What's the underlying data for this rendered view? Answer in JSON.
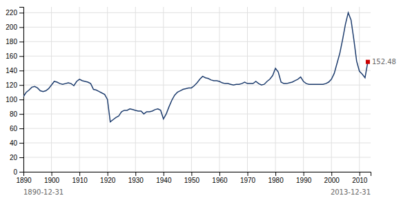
{
  "chart_data": {
    "type": "line",
    "series": [
      {
        "type": "line",
        "color": "#1e3d6e",
        "x": [
          1890,
          1891,
          1892,
          1893,
          1894,
          1895,
          1896,
          1897,
          1898,
          1899,
          1900,
          1901,
          1902,
          1903,
          1904,
          1905,
          1906,
          1907,
          1908,
          1909,
          1910,
          1911,
          1912,
          1913,
          1914,
          1915,
          1916,
          1917,
          1918,
          1919,
          1920,
          1921,
          1922,
          1923,
          1924,
          1925,
          1926,
          1927,
          1928,
          1929,
          1930,
          1931,
          1932,
          1933,
          1934,
          1935,
          1936,
          1937,
          1938,
          1939,
          1940,
          1941,
          1942,
          1943,
          1944,
          1945,
          1946,
          1947,
          1948,
          1949,
          1950,
          1951,
          1952,
          1953,
          1954,
          1955,
          1956,
          1957,
          1958,
          1959,
          1960,
          1961,
          1962,
          1963,
          1964,
          1965,
          1966,
          1967,
          1968,
          1969,
          1970,
          1971,
          1972,
          1973,
          1974,
          1975,
          1976,
          1977,
          1978,
          1979,
          1980,
          1981,
          1982,
          1983,
          1984,
          1985,
          1986,
          1987,
          1988,
          1989,
          1990,
          1991,
          1992,
          1993,
          1994,
          1995,
          1996,
          1997,
          1998,
          1999,
          2000,
          2001,
          2002,
          2003,
          2004,
          2005,
          2006,
          2007,
          2008,
          2009,
          2010,
          2011,
          2012,
          2013
        ],
        "values": [
          104,
          110,
          113,
          117,
          118,
          116,
          112,
          111,
          112,
          115,
          120,
          125,
          124,
          122,
          121,
          122,
          123,
          122,
          119,
          125,
          128,
          126,
          125,
          124,
          122,
          114,
          113,
          111,
          109,
          107,
          100,
          69,
          72,
          75,
          77,
          83,
          85,
          85,
          87,
          86,
          85,
          84,
          84,
          80,
          83,
          83,
          84,
          86,
          87,
          85,
          73,
          80,
          90,
          99,
          106,
          110,
          112,
          114,
          115,
          116,
          116,
          119,
          123,
          128,
          132,
          130,
          129,
          127,
          126,
          126,
          125,
          123,
          122,
          122,
          121,
          120,
          121,
          121,
          122,
          124,
          122,
          122,
          122,
          125,
          122,
          120,
          121,
          125,
          128,
          133,
          143,
          138,
          124,
          122,
          122,
          123,
          124,
          126,
          128,
          131,
          125,
          122,
          121,
          121,
          121,
          121,
          121,
          121,
          122,
          124,
          128,
          136,
          150,
          164,
          183,
          204,
          220,
          210,
          183,
          153,
          139,
          135,
          130,
          152
        ]
      },
      {
        "type": "scatter",
        "marker": "square",
        "color": "#cc0000",
        "x": [
          2013
        ],
        "values": [
          152
        ]
      }
    ],
    "annotations": [
      "152.48",
      "1890-12-31",
      "2013-12-31"
    ],
    "xlim": [
      1890,
      2014
    ],
    "xticks": [
      1890,
      1900,
      1910,
      1920,
      1930,
      1940,
      1950,
      1960,
      1970,
      1980,
      1990,
      2000,
      2010
    ],
    "ylim": [
      0,
      228
    ],
    "yticks": [
      0,
      20,
      40,
      60,
      80,
      100,
      120,
      140,
      160,
      180,
      200,
      220
    ],
    "grid": true
  }
}
